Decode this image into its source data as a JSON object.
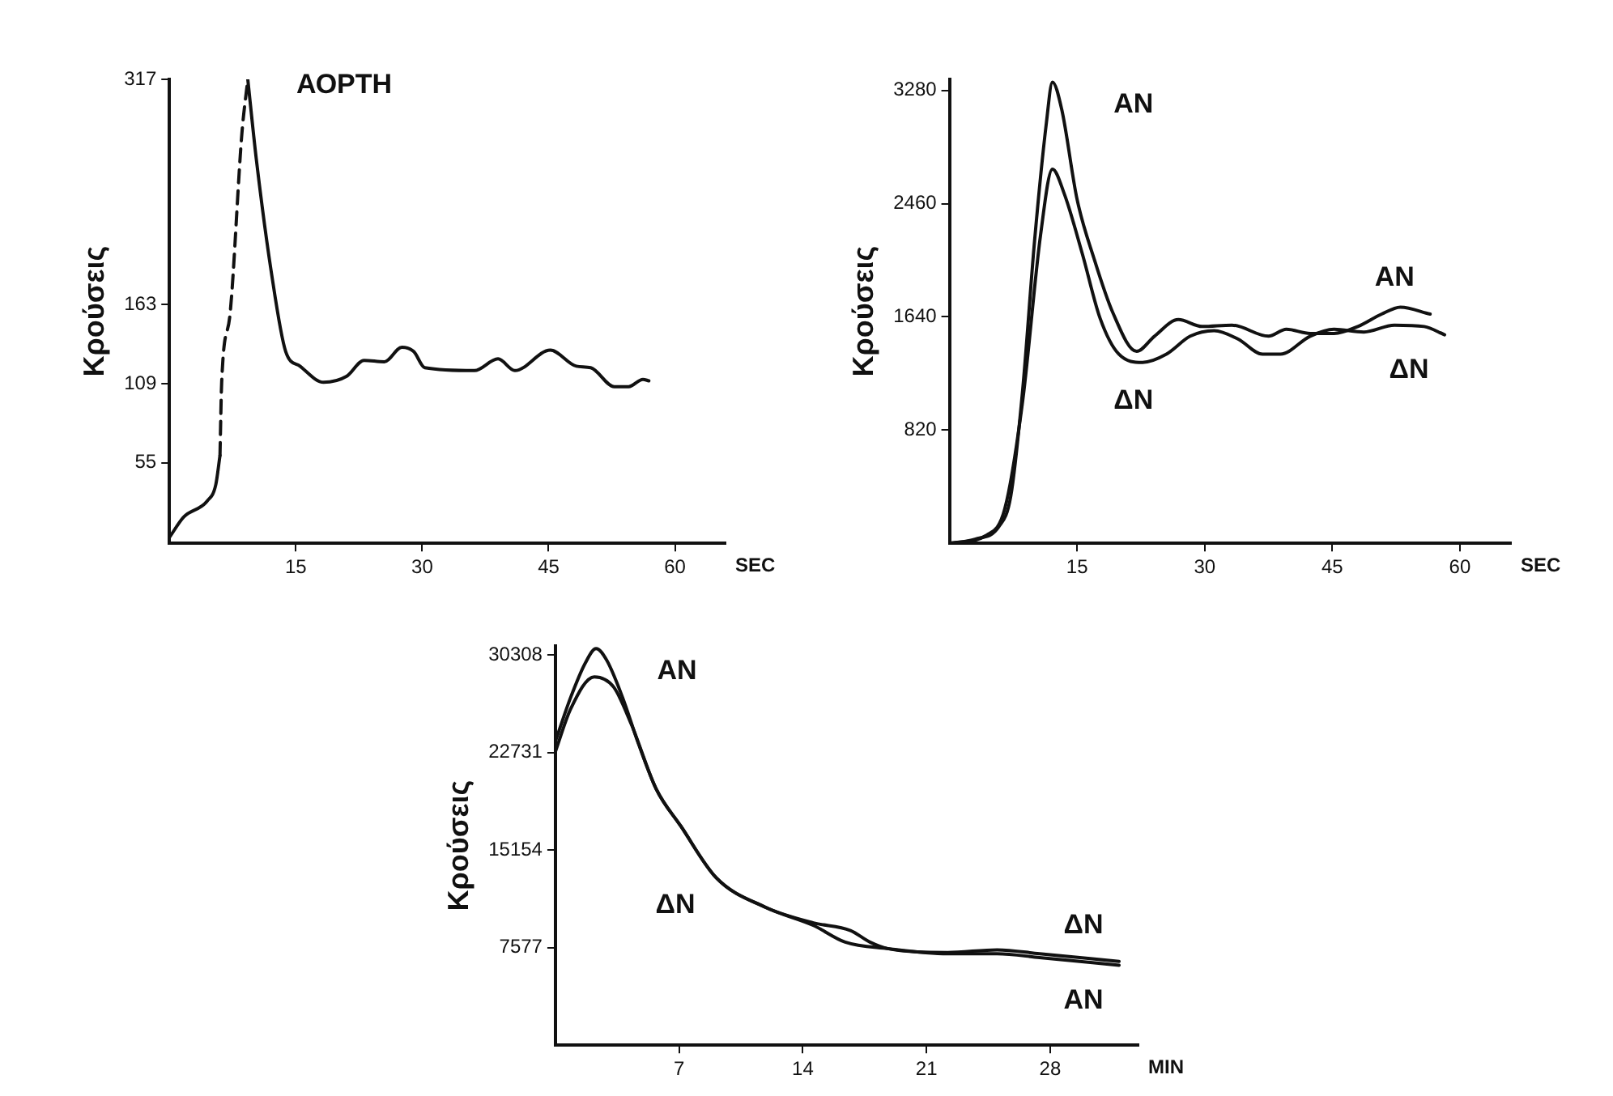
{
  "chart_data": [
    {
      "type": "line",
      "ylabel": "Κρούσεις",
      "xlabel": "SEC",
      "marker": "none",
      "xlim": [
        0,
        66
      ],
      "xticks": [
        15,
        30,
        45,
        60
      ],
      "ylim": [
        0,
        317
      ],
      "yticks": [
        55,
        109,
        163,
        317
      ],
      "annotations": [
        "ΑΟΡΤΗ"
      ],
      "series": [
        {
          "color": "#111111",
          "line_style": "solid",
          "x": [
            0,
            1.7,
            4.5,
            5.5,
            6
          ],
          "values": [
            4,
            18,
            29,
            40,
            60
          ]
        },
        {
          "color": "#111111",
          "line_style": "dashed",
          "x": [
            6,
            6.2,
            7.2,
            8.6,
            9.3
          ],
          "values": [
            60,
            110,
            157,
            280,
            317
          ]
        },
        {
          "color": "#111111",
          "line_style": "solid",
          "x": [
            9.3,
            10.3,
            12.1,
            13.8,
            15.5,
            18.3,
            21,
            23.1,
            25.5,
            27.6,
            29,
            30.3,
            36.2,
            39,
            41,
            45.2,
            48.3,
            50,
            52.8,
            54.5,
            56.2,
            56.9
          ],
          "values": [
            317,
            263,
            185,
            131,
            121,
            110,
            114,
            125,
            124,
            134,
            131,
            120,
            118,
            126,
            118,
            132,
            121,
            120,
            107,
            107,
            112,
            111
          ]
        }
      ]
    },
    {
      "type": "line",
      "ylabel": "Κρούσεις",
      "xlabel": "SEC",
      "marker": "none",
      "xlim": [
        0,
        66
      ],
      "xticks": [
        15,
        30,
        45,
        60
      ],
      "ylim": [
        0,
        3360
      ],
      "yticks": [
        820,
        1640,
        2460,
        3280
      ],
      "series": [
        {
          "name": "ΑΝ",
          "color": "#111111",
          "x": [
            0,
            3,
            5.8,
            7.2,
            8.6,
            10,
            11.4,
            12.1,
            13.2,
            15,
            17,
            19.2,
            22,
            24.1,
            26.9,
            29.7,
            33.2,
            37.5,
            39.6,
            42.4,
            45.2,
            48,
            50.8,
            53,
            56.5
          ],
          "values": [
            0,
            30,
            120,
            340,
            1110,
            2190,
            3050,
            3340,
            3140,
            2490,
            2060,
            1670,
            1390,
            1500,
            1620,
            1570,
            1580,
            1500,
            1550,
            1520,
            1520,
            1570,
            1660,
            1710,
            1660
          ]
        },
        {
          "name": "ΔΝ",
          "color": "#111111",
          "x": [
            0,
            4.4,
            6.5,
            8.6,
            10.7,
            12.1,
            13.5,
            15.6,
            17.7,
            19.9,
            22.7,
            25.5,
            28.3,
            31.1,
            33.9,
            36.8,
            38.9,
            42.4,
            45.2,
            48.7,
            52.3,
            55.8,
            58.2
          ],
          "values": [
            0,
            60,
            250,
            1030,
            2230,
            2710,
            2530,
            2100,
            1630,
            1370,
            1310,
            1370,
            1500,
            1540,
            1480,
            1370,
            1370,
            1500,
            1550,
            1530,
            1580,
            1570,
            1510
          ]
        }
      ]
    },
    {
      "type": "line",
      "ylabel": "Κρούσεις",
      "xlabel": "MIN",
      "marker": "none",
      "xlim": [
        0,
        33
      ],
      "xticks": [
        7,
        14,
        21,
        28
      ],
      "ylim": [
        0,
        31000
      ],
      "yticks": [
        7577,
        15154,
        22731,
        30308
      ],
      "series": [
        {
          "name": "ΑΝ",
          "color": "#111111",
          "x": [
            0,
            0.86,
            1.7,
            2.3,
            2.9,
            3.8,
            4.7,
            5.7,
            7.1,
            9.1,
            11.9,
            14.6,
            16.4,
            18.8,
            22.2,
            25,
            27.4,
            31.9
          ],
          "values": [
            23600,
            27000,
            29700,
            30800,
            29900,
            27000,
            23400,
            19900,
            17000,
            13000,
            10700,
            9300,
            8000,
            7500,
            7100,
            7100,
            6800,
            6200
          ]
        },
        {
          "name": "ΔΝ",
          "color": "#111111",
          "x": [
            0,
            0.86,
            2.2,
            3.3,
            4.3,
            5.7,
            7.1,
            9.1,
            11.9,
            14.6,
            16.7,
            17.8,
            18.8,
            22.2,
            25,
            27.4,
            31.9
          ],
          "values": [
            22800,
            26100,
            28600,
            27800,
            24900,
            19900,
            17000,
            13000,
            10700,
            9500,
            8900,
            8000,
            7500,
            7200,
            7400,
            7100,
            6500
          ]
        }
      ]
    }
  ]
}
